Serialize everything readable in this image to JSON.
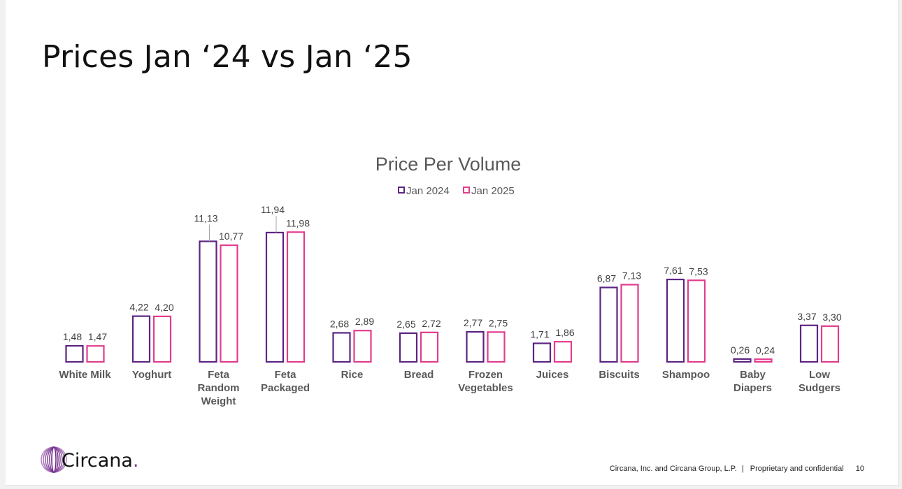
{
  "slide": {
    "title": "Prices Jan ‘24 vs Jan ‘25",
    "footer_text": "Circana, Inc. and Circana Group, L.P.",
    "footer_separator": "|",
    "footer_confidential": "Proprietary and confidential",
    "page_number": "10",
    "logo_text": "Circana",
    "logo_dot": "."
  },
  "colors": {
    "jan2024": "#5c2483",
    "jan2025": "#e23c8c",
    "category_label": "#595959",
    "value_label": "#404040",
    "chart_title": "#595959"
  },
  "chart_data": {
    "type": "bar",
    "title": "Price Per Volume",
    "legend_position": "top",
    "grid": false,
    "xlabel": "",
    "ylabel": "",
    "ylim": [
      0,
      13
    ],
    "categories": [
      [
        "White Milk"
      ],
      [
        "Yoghurt"
      ],
      [
        "Feta",
        "Random",
        "Weight"
      ],
      [
        "Feta",
        "Packaged"
      ],
      [
        "Rice"
      ],
      [
        "Bread"
      ],
      [
        "Frozen",
        "Vegetables"
      ],
      [
        "Juices"
      ],
      [
        "Biscuits"
      ],
      [
        "Shampoo"
      ],
      [
        "Baby",
        "Diapers"
      ],
      [
        "Low",
        "Sudgers"
      ]
    ],
    "series": [
      {
        "name": "Jan 2024",
        "values": [
          1.48,
          4.22,
          11.13,
          11.94,
          2.68,
          2.65,
          2.77,
          1.71,
          6.87,
          7.61,
          0.26,
          3.37
        ],
        "labels": [
          "1,48",
          "4,22",
          "11,13",
          "11,94",
          "2,68",
          "2,65",
          "2,77",
          "1,71",
          "6,87",
          "7,61",
          "0,26",
          "3,37"
        ]
      },
      {
        "name": "Jan 2025",
        "values": [
          1.47,
          4.2,
          10.77,
          11.98,
          2.89,
          2.72,
          2.75,
          1.86,
          7.13,
          7.53,
          0.24,
          3.3
        ],
        "labels": [
          "1,47",
          "4,20",
          "10,77",
          "11,98",
          "2,89",
          "2,72",
          "2,75",
          "1,86",
          "7,13",
          "7,53",
          "0,24",
          "3,30"
        ]
      }
    ]
  }
}
